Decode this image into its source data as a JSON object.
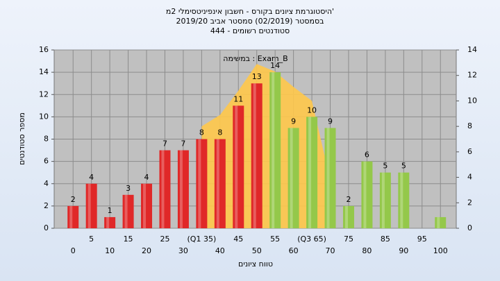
{
  "chart_data": {
    "type": "bar",
    "title": "היסטוגרמת ציונים בקורס - חשבון אינפיניטסימלי 2מ'",
    "subtitle": "בסמסטר (02/2019) סמסטר אביב 2019/20",
    "subtitle2": "סטודנטים רשומים - 444",
    "annotation": "במשימה : Exam_B",
    "x_label": "טווח ציונים",
    "y_label": "מספר סטודנטים",
    "categories": [
      "0",
      "5",
      "10",
      "15",
      "20",
      "25",
      "30",
      "(Q1 35)",
      "40",
      "45",
      "50",
      "55",
      "60",
      "(Q3 65)",
      "70",
      "75",
      "80",
      "85",
      "90",
      "95",
      "100"
    ],
    "series": [
      {
        "values": [
          2,
          4,
          1,
          3,
          4,
          7,
          7,
          8,
          8,
          11,
          13,
          14,
          9,
          10,
          9,
          2,
          6,
          5,
          5,
          0,
          1
        ],
        "colors": [
          "#e02828",
          "#e02828",
          "#e02828",
          "#e02828",
          "#e02828",
          "#e02828",
          "#e02828",
          "#e02828",
          "#e02828",
          "#e02828",
          "#e02828",
          "#94c84a",
          "#94c84a",
          "#94c84a",
          "#94c84a",
          "#94c84a",
          "#94c84a",
          "#94c84a",
          "#94c84a",
          "#94c84a",
          "#94c84a"
        ]
      },
      {
        "axis": "y2",
        "color": "#ffc84a",
        "values": [
          null,
          null,
          null,
          null,
          null,
          null,
          null,
          8,
          8.9,
          10.8,
          12.9,
          12.3,
          11.1,
          10,
          3.8,
          null,
          null,
          null,
          null,
          null,
          null
        ]
      }
    ],
    "ylim": [
      0,
      16
    ],
    "yticks": [
      0,
      2,
      4,
      6,
      8,
      10,
      12,
      14,
      16
    ],
    "y2lim": [
      0,
      14
    ],
    "y2ticks": [
      0,
      2,
      4,
      6,
      8,
      10,
      12,
      14
    ],
    "grid": true
  }
}
